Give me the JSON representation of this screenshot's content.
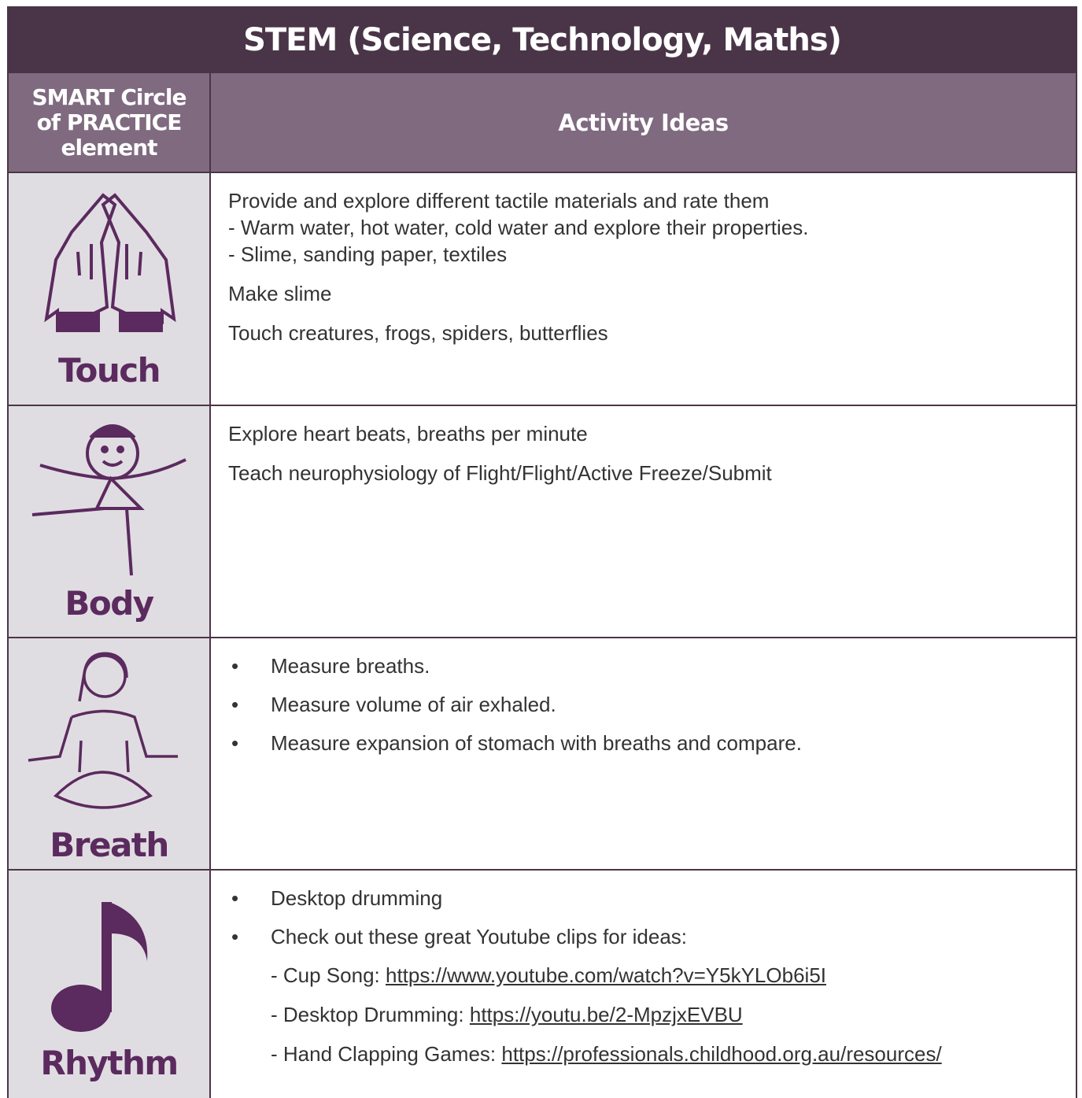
{
  "title": "STEM (Science, Technology, Maths)",
  "table": {
    "headers": [
      "SMART Circle of PRACTICE element",
      "Activity Ideas"
    ],
    "rows": [
      {
        "element": "Touch",
        "blocks": [
          [
            "Provide and explore different tactile materials and rate them",
            "- Warm water, hot water, cold water and explore their properties.",
            "- Slime, sanding paper, textiles"
          ],
          [
            "Make slime"
          ],
          [
            "Touch creatures, frogs, spiders, butterflies"
          ]
        ]
      },
      {
        "element": "Body",
        "blocks": [
          [
            "Explore heart beats, breaths per minute"
          ],
          [
            "Teach neurophysiology of Flight/Flight/Active Freeze/Submit"
          ]
        ]
      },
      {
        "element": "Breath",
        "bullets": [
          "Measure breaths.",
          "Measure volume of air exhaled.",
          "Measure expansion of stomach with breaths and compare."
        ]
      },
      {
        "element": "Rhythm",
        "bullets": [
          "Desktop drumming",
          "Check out these great Youtube clips for ideas:"
        ],
        "links": [
          {
            "label": "- Cup Song:",
            "url": "https://www.youtube.com/watch?v=Y5kYLOb6i5I"
          },
          {
            "label": "- Desktop Drumming:",
            "url": "https://youtu.be/2-MpzjxEVBU"
          },
          {
            "label": "- Hand Clapping Games:",
            "url": "https://professionals.childhood.org.au/resources/"
          }
        ]
      }
    ]
  }
}
